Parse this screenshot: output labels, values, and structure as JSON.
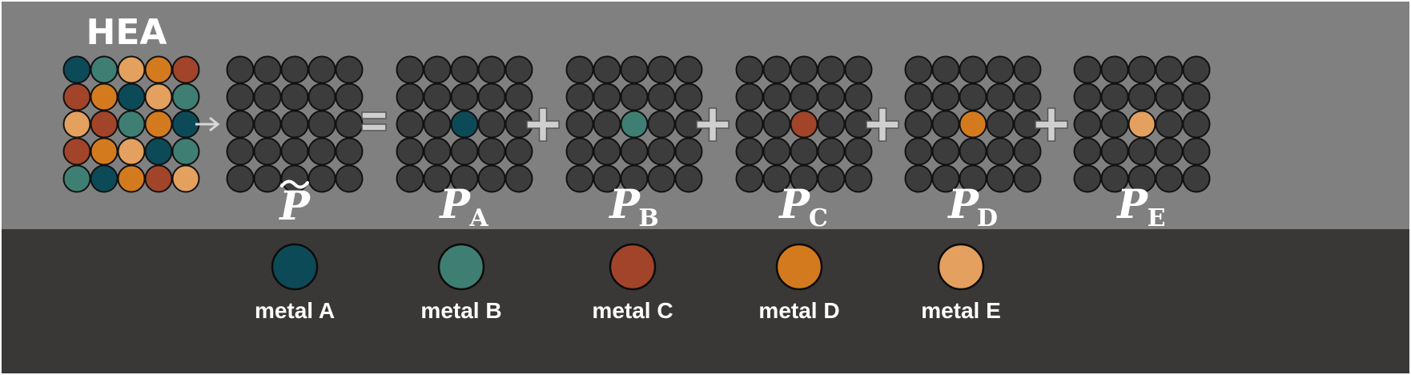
{
  "colors": {
    "top_panel": "#808080",
    "bottom_panel": "#3a3837",
    "atom_default": "#3c3c3c",
    "metal_A": "#0d4a58",
    "metal_B": "#3f7e73",
    "metal_C": "#a2442a",
    "metal_D": "#d47a1e",
    "metal_E": "#e4a05f"
  },
  "hea": {
    "title": "HEA",
    "grid": [
      [
        "A",
        "B",
        "E",
        "D",
        "C"
      ],
      [
        "C",
        "D",
        "A",
        "E",
        "B"
      ],
      [
        "E",
        "C",
        "B",
        "D",
        "A"
      ],
      [
        "C",
        "D",
        "E",
        "A",
        "B"
      ],
      [
        "B",
        "A",
        "D",
        "C",
        "E"
      ]
    ]
  },
  "operators": {
    "arrow": "→",
    "equals": "=",
    "plus": "+"
  },
  "projections": [
    {
      "id": "tilde",
      "symbol": "P",
      "subscript": "",
      "tilde": true,
      "center_metal": null
    },
    {
      "id": "A",
      "symbol": "P",
      "subscript": "A",
      "tilde": false,
      "center_metal": "A"
    },
    {
      "id": "B",
      "symbol": "P",
      "subscript": "B",
      "tilde": false,
      "center_metal": "B"
    },
    {
      "id": "C",
      "symbol": "P",
      "subscript": "C",
      "tilde": false,
      "center_metal": "C"
    },
    {
      "id": "D",
      "symbol": "P",
      "subscript": "D",
      "tilde": false,
      "center_metal": "D"
    },
    {
      "id": "E",
      "symbol": "P",
      "subscript": "E",
      "tilde": false,
      "center_metal": "E"
    }
  ],
  "legend": [
    {
      "metal": "A",
      "label": "metal A"
    },
    {
      "metal": "B",
      "label": "metal B"
    },
    {
      "metal": "C",
      "label": "metal C"
    },
    {
      "metal": "D",
      "label": "metal D"
    },
    {
      "metal": "E",
      "label": "metal E"
    }
  ]
}
